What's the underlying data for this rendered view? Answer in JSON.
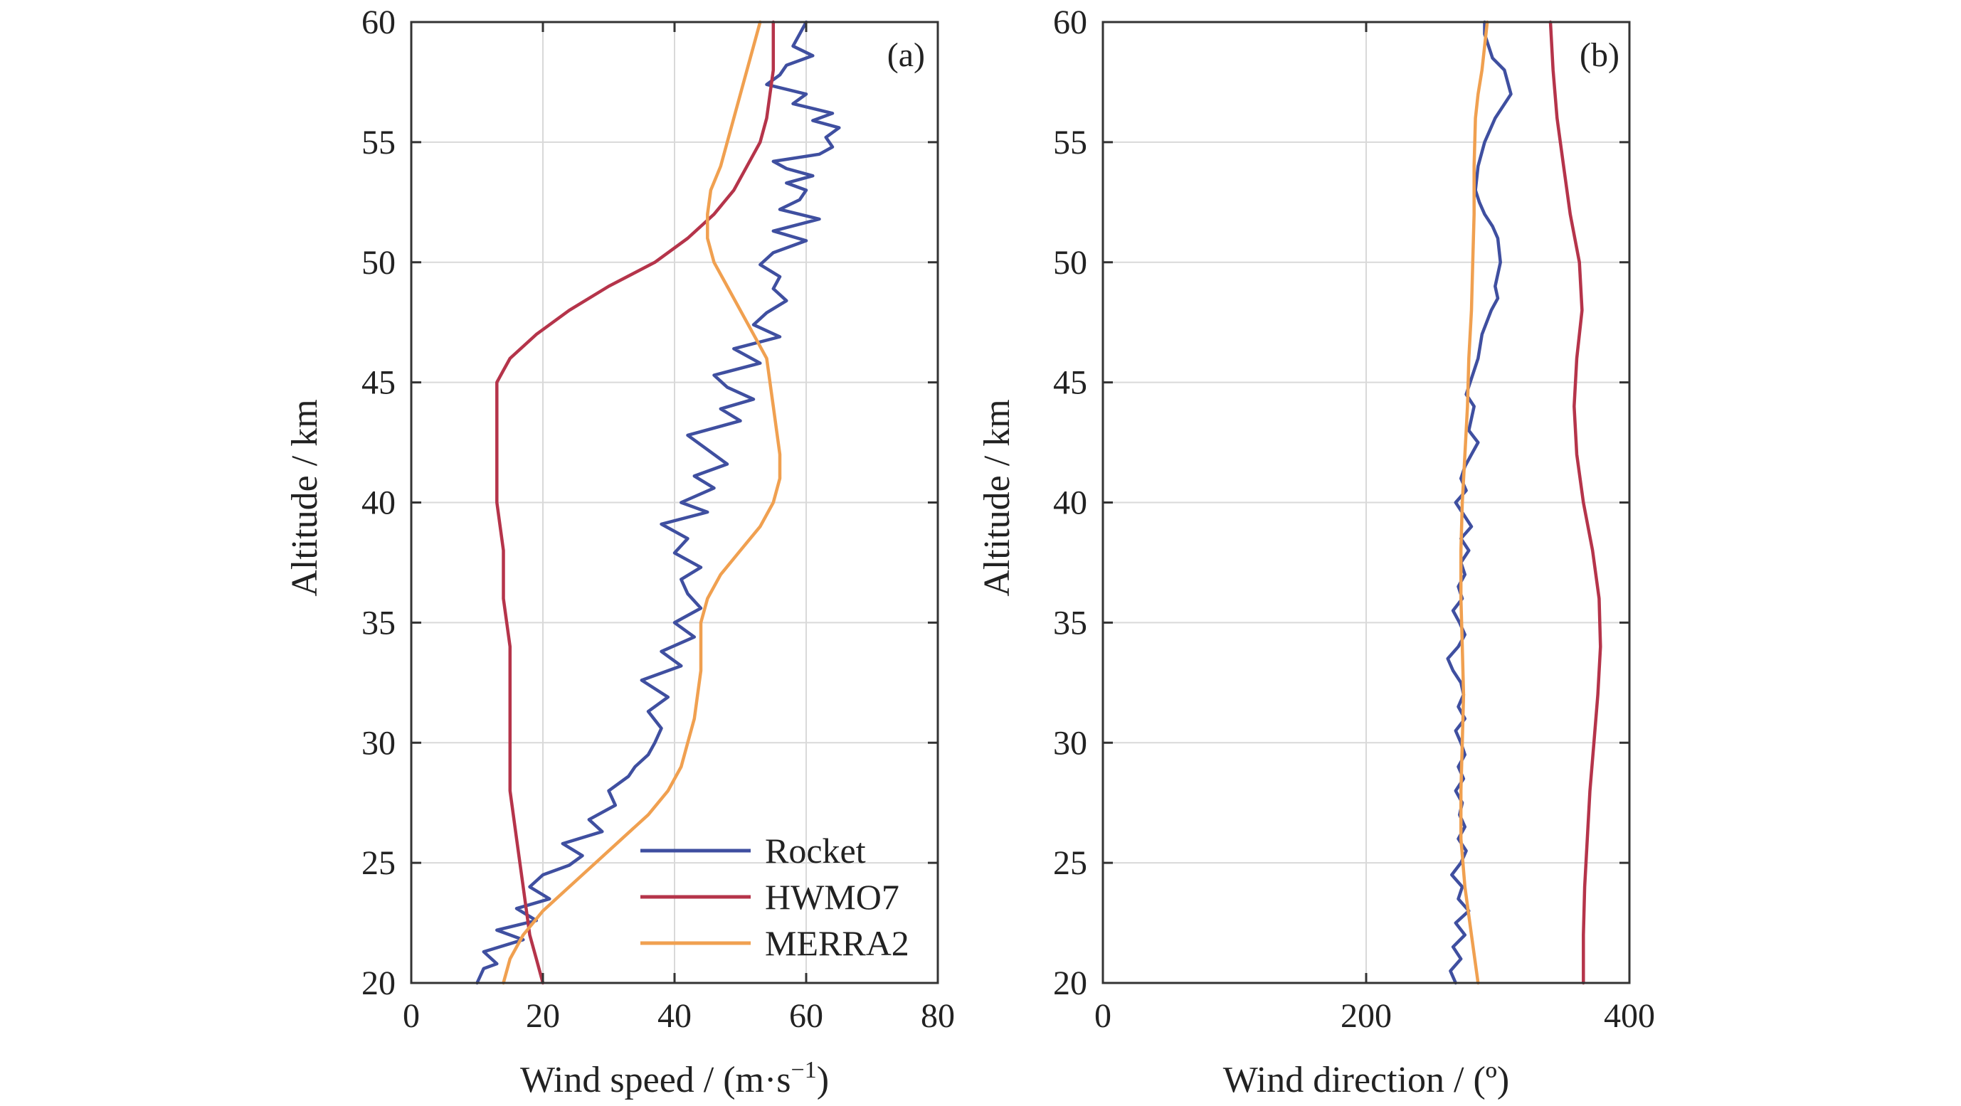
{
  "chart_data": [
    {
      "type": "line",
      "panel": "(a)",
      "xlabel": "Wind speed / (m·s",
      "xlabel_sup": "−1",
      "xlabel_end": ")",
      "ylabel": "Altitude / km",
      "xlim": [
        0,
        80
      ],
      "ylim": [
        20,
        60
      ],
      "xticks": [
        0,
        20,
        40,
        60,
        80
      ],
      "yticks": [
        20,
        25,
        30,
        35,
        40,
        45,
        50,
        55,
        60
      ],
      "grid": true,
      "legend": {
        "placement": "bottom-right",
        "entries": [
          "Rocket",
          "HWMO7",
          "MERRA2"
        ]
      },
      "series": [
        {
          "name": "Rocket",
          "color": "#3f4fa0",
          "x": [
            10,
            11,
            13,
            11,
            17,
            13,
            19,
            16,
            21,
            18,
            20,
            24,
            26,
            23,
            29,
            27,
            31,
            30,
            33,
            34,
            36,
            37,
            38,
            36,
            39,
            35,
            41,
            38,
            43,
            40,
            44,
            42,
            41,
            44,
            40,
            42,
            38,
            45,
            41,
            46,
            43,
            48,
            45,
            42,
            50,
            47,
            52,
            48,
            46,
            53,
            49,
            56,
            52,
            54,
            57,
            55,
            56,
            53,
            55,
            60,
            55,
            62,
            56,
            59,
            60,
            57,
            61,
            57,
            55,
            62,
            64,
            63,
            65,
            61,
            64,
            58,
            60,
            54,
            56,
            57,
            61,
            58,
            59,
            60
          ],
          "y": [
            20.0,
            20.6,
            20.8,
            21.3,
            21.8,
            22.2,
            22.6,
            23.1,
            23.5,
            24.0,
            24.5,
            24.9,
            25.3,
            25.8,
            26.3,
            26.8,
            27.4,
            28.0,
            28.6,
            29.0,
            29.5,
            30.0,
            30.6,
            31.3,
            31.9,
            32.6,
            33.2,
            33.8,
            34.4,
            35.0,
            35.6,
            36.2,
            36.8,
            37.3,
            37.9,
            38.5,
            39.1,
            39.6,
            40.0,
            40.6,
            41.1,
            41.6,
            42.2,
            42.8,
            43.4,
            43.9,
            44.3,
            44.8,
            45.3,
            45.8,
            46.4,
            46.9,
            47.4,
            47.9,
            48.4,
            48.9,
            49.4,
            49.9,
            50.4,
            50.9,
            51.3,
            51.8,
            52.2,
            52.6,
            53.0,
            53.3,
            53.6,
            53.9,
            54.2,
            54.5,
            54.8,
            55.2,
            55.6,
            55.9,
            56.2,
            56.6,
            57.0,
            57.4,
            57.8,
            58.2,
            58.6,
            59.0,
            59.5,
            60.0
          ]
        },
        {
          "name": "HWMO7",
          "color": "#b5344a",
          "x": [
            20,
            19,
            18,
            17,
            16,
            15,
            15,
            15,
            15,
            14,
            14,
            13,
            13,
            13,
            13,
            13,
            14,
            15,
            17,
            19,
            24,
            30,
            37,
            42,
            46,
            49,
            51,
            53,
            54,
            55,
            55
          ],
          "y": [
            20,
            21,
            22,
            24,
            26,
            28,
            30,
            32,
            34,
            36,
            38,
            40,
            42,
            43,
            44,
            45,
            45.5,
            46,
            46.5,
            47,
            48,
            49,
            50,
            51,
            52,
            53,
            54,
            55,
            56,
            58,
            60
          ]
        },
        {
          "name": "MERRA2",
          "color": "#f0a050",
          "x": [
            14,
            15,
            17,
            20,
            24,
            28,
            32,
            36,
            39,
            41,
            42,
            43,
            43.5,
            44,
            44,
            44,
            45,
            47,
            50,
            53,
            55,
            56,
            56,
            55,
            54,
            52,
            50,
            48,
            46,
            45,
            45,
            45.5,
            47,
            49,
            51,
            53
          ],
          "y": [
            20,
            21,
            22,
            23,
            24,
            25,
            26,
            27,
            28,
            29,
            30,
            31,
            32,
            33,
            34,
            35,
            36,
            37,
            38,
            39,
            40,
            41,
            42,
            44,
            46,
            47,
            48,
            49,
            50,
            51,
            52,
            53,
            54,
            56,
            58,
            60
          ]
        }
      ]
    },
    {
      "type": "line",
      "panel": "(b)",
      "xlabel": "Wind direction / (º)",
      "xlim": [
        0,
        400
      ],
      "ylim": [
        20,
        60
      ],
      "xticks": [
        0,
        200,
        400
      ],
      "yticks": [
        20,
        25,
        30,
        35,
        40,
        45,
        50,
        55,
        60
      ],
      "ylabel": "Altitude / km",
      "grid": true,
      "series": [
        {
          "name": "Rocket",
          "color": "#3f4fa0",
          "x": [
            268,
            264,
            272,
            266,
            275,
            268,
            278,
            270,
            273,
            265,
            272,
            276,
            270,
            275,
            271,
            273,
            268,
            274,
            270,
            275,
            272,
            268,
            275,
            270,
            274,
            272,
            266,
            262,
            270,
            275,
            271,
            266,
            273,
            270,
            275,
            272,
            278,
            272,
            280,
            274,
            268,
            276,
            272,
            275,
            280,
            285,
            278,
            282,
            276,
            279,
            285,
            288,
            295,
            300,
            298,
            302,
            300,
            296,
            290,
            286,
            283,
            285,
            290,
            298,
            310,
            305,
            296,
            290,
            290
          ],
          "y": [
            20.0,
            20.5,
            21.0,
            21.5,
            22.0,
            22.5,
            23.0,
            23.5,
            24.0,
            24.5,
            25.0,
            25.5,
            26.0,
            26.5,
            27.0,
            27.5,
            28.0,
            28.5,
            29.0,
            29.5,
            30.0,
            30.5,
            31.0,
            31.5,
            32.0,
            32.5,
            33.0,
            33.5,
            34.0,
            34.5,
            35.0,
            35.5,
            36.0,
            36.5,
            37.0,
            37.5,
            38.0,
            38.5,
            39.0,
            39.5,
            40.0,
            40.5,
            41.0,
            41.5,
            42.0,
            42.5,
            43.0,
            44.0,
            44.5,
            45.0,
            46.0,
            47.0,
            48.0,
            48.5,
            49.0,
            50.0,
            51.0,
            51.5,
            52.0,
            52.5,
            53.0,
            54.0,
            55.0,
            56.0,
            57.0,
            58.0,
            58.5,
            59.5,
            60.0
          ]
        },
        {
          "name": "HWMO7",
          "color": "#b5344a",
          "x": [
            365,
            365,
            366,
            368,
            370,
            373,
            376,
            378,
            377,
            372,
            365,
            360,
            358,
            360,
            364,
            362,
            355,
            350,
            345,
            342,
            340
          ],
          "y": [
            20,
            22,
            24,
            26,
            28,
            30,
            32,
            34,
            36,
            38,
            40,
            42,
            44,
            46,
            48,
            50,
            52,
            54,
            56,
            58,
            60
          ]
        },
        {
          "name": "MERRA2",
          "color": "#f0a050",
          "x": [
            285,
            280,
            275,
            272,
            272,
            273,
            274,
            273,
            272,
            272,
            273,
            275,
            277,
            278,
            280,
            281,
            282,
            282,
            283,
            285,
            288,
            292
          ],
          "y": [
            20,
            22,
            24,
            26,
            28,
            30,
            32,
            34,
            36,
            38,
            40,
            42,
            44,
            46,
            48,
            50,
            52,
            54,
            56,
            57,
            58,
            60
          ]
        }
      ]
    }
  ]
}
